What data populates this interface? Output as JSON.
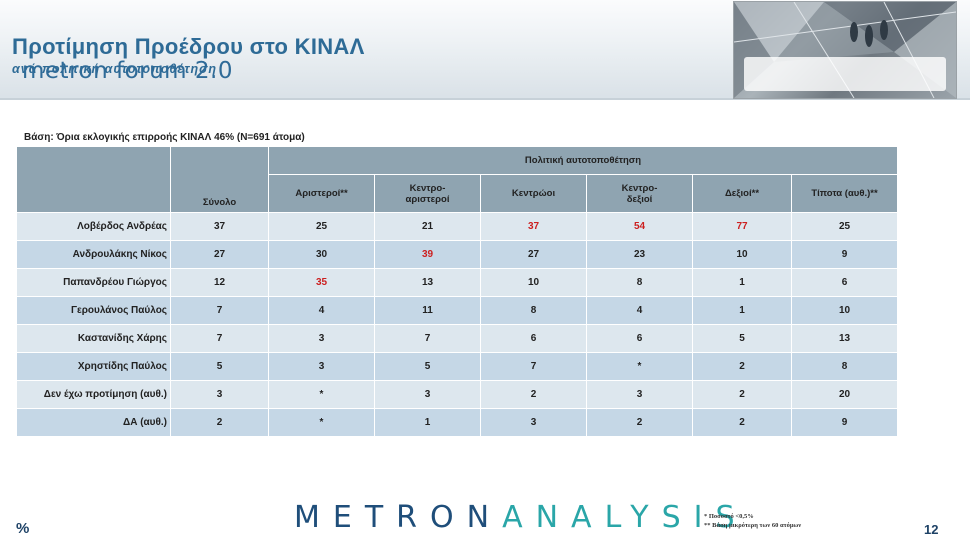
{
  "header": {
    "title": "Προτίμηση Προέδρου στο ΚΙΝΑΛ",
    "subtitle": "ανά πολιτική αυτοτοποθέτηση",
    "logo_text": "metron forum 2.0"
  },
  "basis": "Βάση: Όρια εκλογικής επιρροής ΚΙΝΑΛ 46% (Ν=691 άτομα)",
  "table": {
    "total_header": "Σύνολο",
    "group_header": "Πολιτική αυτοτοποθέτηση",
    "columns": [
      "Αριστεροί**",
      "Κεντρο-\nαριστεροί",
      "Κεντρώοι",
      "Κεντρο-\nδεξιοί",
      "Δεξιοί**",
      "Τίποτα (αυθ.)**"
    ],
    "rows": [
      {
        "name": "Λοβέρδος Ανδρέας",
        "total": "37",
        "values": [
          "25",
          "21",
          "37",
          "54",
          "77",
          "25"
        ],
        "highlight": [
          false,
          false,
          true,
          true,
          true,
          false
        ]
      },
      {
        "name": "Ανδρουλάκης Νίκος",
        "total": "27",
        "values": [
          "30",
          "39",
          "27",
          "23",
          "10",
          "9"
        ],
        "highlight": [
          false,
          true,
          false,
          false,
          false,
          false
        ]
      },
      {
        "name": "Παπανδρέου Γιώργος",
        "total": "12",
        "values": [
          "35",
          "13",
          "10",
          "8",
          "1",
          "6"
        ],
        "highlight": [
          true,
          false,
          false,
          false,
          false,
          false
        ]
      },
      {
        "name": "Γερουλάνος Παύλος",
        "total": "7",
        "values": [
          "4",
          "11",
          "8",
          "4",
          "1",
          "10"
        ],
        "highlight": [
          false,
          false,
          false,
          false,
          false,
          false
        ]
      },
      {
        "name": "Καστανίδης Χάρης",
        "total": "7",
        "values": [
          "3",
          "7",
          "6",
          "6",
          "5",
          "13"
        ],
        "highlight": [
          false,
          false,
          false,
          false,
          false,
          false
        ]
      },
      {
        "name": "Χρηστίδης Παύλος",
        "total": "5",
        "values": [
          "3",
          "5",
          "7",
          "*",
          "2",
          "8"
        ],
        "highlight": [
          false,
          false,
          false,
          false,
          false,
          false
        ]
      },
      {
        "name": "Δεν έχω προτίμηση (αυθ.)",
        "total": "3",
        "values": [
          "*",
          "3",
          "2",
          "3",
          "2",
          "20"
        ],
        "highlight": [
          false,
          false,
          false,
          false,
          false,
          false
        ]
      },
      {
        "name": "ΔΑ (αυθ.)",
        "total": "2",
        "values": [
          "*",
          "1",
          "3",
          "2",
          "2",
          "9"
        ],
        "highlight": [
          false,
          false,
          false,
          false,
          false,
          false
        ]
      }
    ],
    "highlight_color": "#cc1f1f"
  },
  "footer": {
    "percent_sign": "%",
    "brand_part1": "METRON",
    "brand_part2": "ANALYSIS",
    "note1": "* Ποσοστό <0,5%",
    "note2": "** Βάση μικρότερη των 60 ατόμων",
    "page_number": "12"
  }
}
